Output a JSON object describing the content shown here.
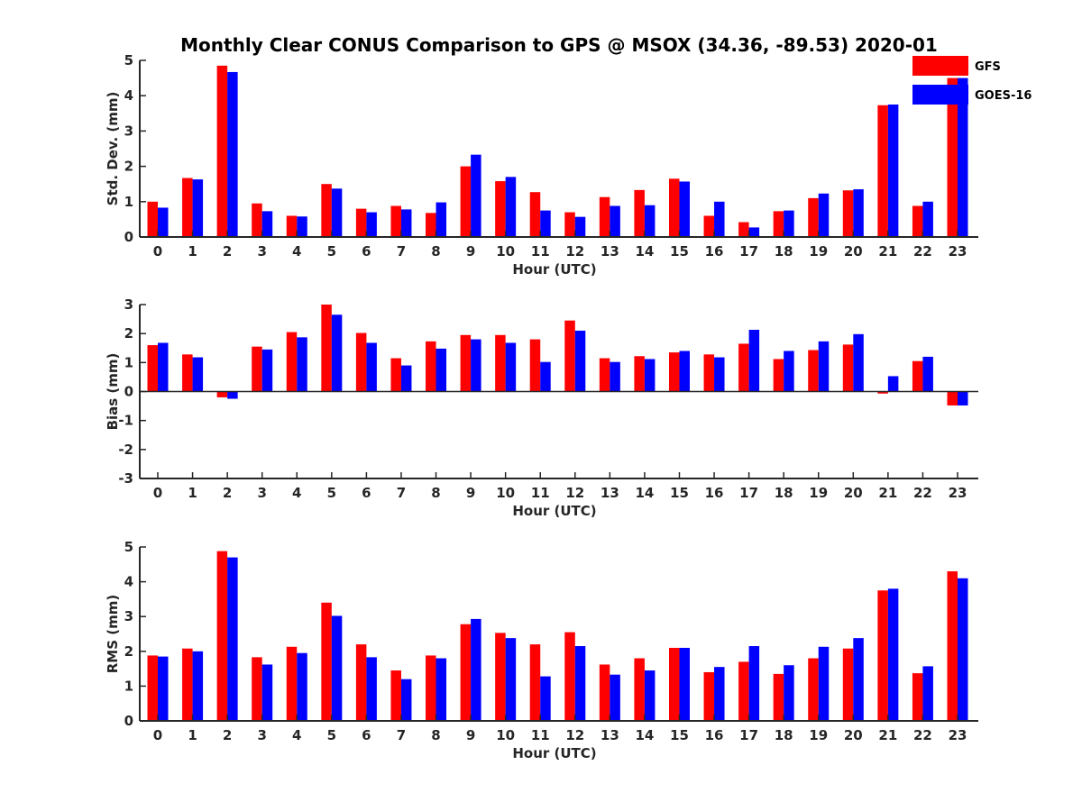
{
  "figure": {
    "title": "Monthly Clear CONUS Comparison to GPS @ MSOX (34.36, -89.53) 2020-01"
  },
  "legend": {
    "placement": "top-right",
    "items": [
      {
        "name": "GFS",
        "color": "#ff0000"
      },
      {
        "name": "GOES-16",
        "color": "#0000ff"
      }
    ]
  },
  "chart_data": [
    {
      "type": "bar",
      "ylabel": "Std. Dev. (mm)",
      "xlabel": "Hour (UTC)",
      "ylim": [
        0,
        5
      ],
      "yticks": [
        0,
        1,
        2,
        3,
        4,
        5
      ],
      "grid": false,
      "categories": [
        "0",
        "1",
        "2",
        "3",
        "4",
        "5",
        "6",
        "7",
        "8",
        "9",
        "10",
        "11",
        "12",
        "13",
        "14",
        "15",
        "16",
        "17",
        "18",
        "19",
        "20",
        "21",
        "22",
        "23"
      ],
      "series": [
        {
          "name": "GFS",
          "color": "#ff0000",
          "values": [
            1.0,
            1.67,
            4.85,
            0.95,
            0.6,
            1.5,
            0.8,
            0.88,
            0.68,
            2.0,
            1.58,
            1.27,
            0.7,
            1.13,
            1.33,
            1.65,
            0.6,
            0.42,
            0.73,
            1.1,
            1.32,
            3.73,
            0.88,
            4.5
          ]
        },
        {
          "name": "GOES-16",
          "color": "#0000ff",
          "values": [
            0.83,
            1.63,
            4.67,
            0.73,
            0.58,
            1.37,
            0.7,
            0.78,
            0.98,
            2.33,
            1.7,
            0.75,
            0.57,
            0.88,
            0.9,
            1.57,
            1.0,
            0.27,
            0.75,
            1.23,
            1.35,
            3.75,
            1.0,
            4.5
          ]
        }
      ]
    },
    {
      "type": "bar",
      "ylabel": "Bias (mm)",
      "xlabel": "Hour (UTC)",
      "ylim": [
        -3,
        3
      ],
      "yticks": [
        -3,
        -2,
        -1,
        0,
        1,
        2,
        3
      ],
      "grid": false,
      "categories": [
        "0",
        "1",
        "2",
        "3",
        "4",
        "5",
        "6",
        "7",
        "8",
        "9",
        "10",
        "11",
        "12",
        "13",
        "14",
        "15",
        "16",
        "17",
        "18",
        "19",
        "20",
        "21",
        "22",
        "23"
      ],
      "series": [
        {
          "name": "GFS",
          "color": "#ff0000",
          "values": [
            1.6,
            1.28,
            -0.2,
            1.55,
            2.05,
            3.0,
            2.02,
            1.15,
            1.73,
            1.95,
            1.95,
            1.8,
            2.45,
            1.15,
            1.22,
            1.35,
            1.28,
            1.65,
            1.12,
            1.43,
            1.62,
            -0.07,
            1.05,
            -0.48
          ]
        },
        {
          "name": "GOES-16",
          "color": "#0000ff",
          "values": [
            1.68,
            1.18,
            -0.25,
            1.45,
            1.87,
            2.65,
            1.68,
            0.9,
            1.48,
            1.8,
            1.68,
            1.02,
            2.1,
            1.02,
            1.12,
            1.4,
            1.18,
            2.13,
            1.4,
            1.73,
            1.98,
            0.53,
            1.2,
            -0.48
          ]
        }
      ]
    },
    {
      "type": "bar",
      "ylabel": "RMS (mm)",
      "xlabel": "Hour (UTC)",
      "ylim": [
        0,
        5
      ],
      "yticks": [
        0,
        1,
        2,
        3,
        4,
        5
      ],
      "grid": false,
      "categories": [
        "0",
        "1",
        "2",
        "3",
        "4",
        "5",
        "6",
        "7",
        "8",
        "9",
        "10",
        "11",
        "12",
        "13",
        "14",
        "15",
        "16",
        "17",
        "18",
        "19",
        "20",
        "21",
        "22",
        "23"
      ],
      "series": [
        {
          "name": "GFS",
          "color": "#ff0000",
          "values": [
            1.88,
            2.08,
            4.88,
            1.83,
            2.13,
            3.4,
            2.2,
            1.45,
            1.88,
            2.78,
            2.53,
            2.2,
            2.55,
            1.62,
            1.8,
            2.1,
            1.4,
            1.7,
            1.35,
            1.8,
            2.08,
            3.75,
            1.37,
            4.3
          ]
        },
        {
          "name": "GOES-16",
          "color": "#0000ff",
          "values": [
            1.85,
            2.0,
            4.7,
            1.62,
            1.95,
            3.02,
            1.83,
            1.2,
            1.8,
            2.93,
            2.38,
            1.28,
            2.15,
            1.33,
            1.45,
            2.1,
            1.55,
            2.15,
            1.6,
            2.13,
            2.38,
            3.8,
            1.57,
            4.1
          ]
        }
      ]
    }
  ]
}
